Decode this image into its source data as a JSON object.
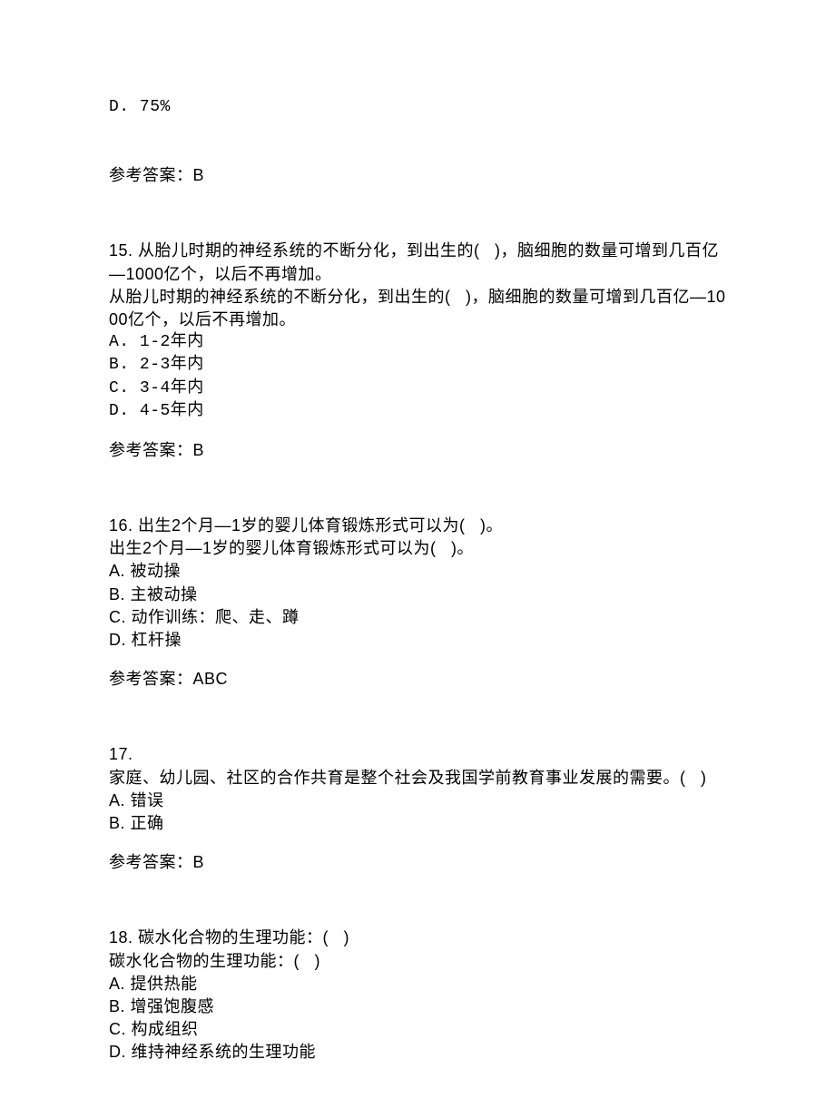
{
  "colors": {
    "text": "#000000",
    "background": "#ffffff"
  },
  "typography": {
    "font_family": "SimSun",
    "font_size_pt": 14,
    "line_height": 1.4
  },
  "q14_tail": {
    "option_d": "D. 75%",
    "answer_label": "参考答案：B"
  },
  "q15": {
    "number": "15. ",
    "stem1": "从胎儿时期的神经系统的不断分化，到出生的(   )，脑细胞的数量可增到几百亿—1000亿个，以后不再增加。",
    "stem2": "从胎儿时期的神经系统的不断分化，到出生的(   )，脑细胞的数量可增到几百亿—1000亿个，以后不再增加。",
    "options": {
      "a": "A. 1-2年内",
      "b": "B. 2-3年内",
      "c": "C. 3-4年内",
      "d": "D. 4-5年内"
    },
    "answer_label": "参考答案：B"
  },
  "q16": {
    "number": "16. ",
    "stem1": "出生2个月—1岁的婴儿体育锻炼形式可以为(   )。",
    "stem2": "出生2个月—1岁的婴儿体育锻炼形式可以为(   )。",
    "options": {
      "a": "A. 被动操",
      "b": "B. 主被动操",
      "c": "C. 动作训练：爬、走、蹲",
      "d": "D. 杠杆操"
    },
    "answer_label": "参考答案：ABC"
  },
  "q17": {
    "number": "17.",
    "stem": "家庭、幼儿园、社区的合作共育是整个社会及我国学前教育事业发展的需要。(   )",
    "options": {
      "a": "A. 错误",
      "b": "B. 正确"
    },
    "answer_label": "参考答案：B"
  },
  "q18": {
    "number": "18. ",
    "stem1": "碳水化合物的生理功能：(   )",
    "stem2": "碳水化合物的生理功能：(   )",
    "options": {
      "a": "A. 提供热能",
      "b": "B. 增强饱腹感",
      "c": "C. 构成组织",
      "d": "D. 维持神经系统的生理功能"
    }
  }
}
